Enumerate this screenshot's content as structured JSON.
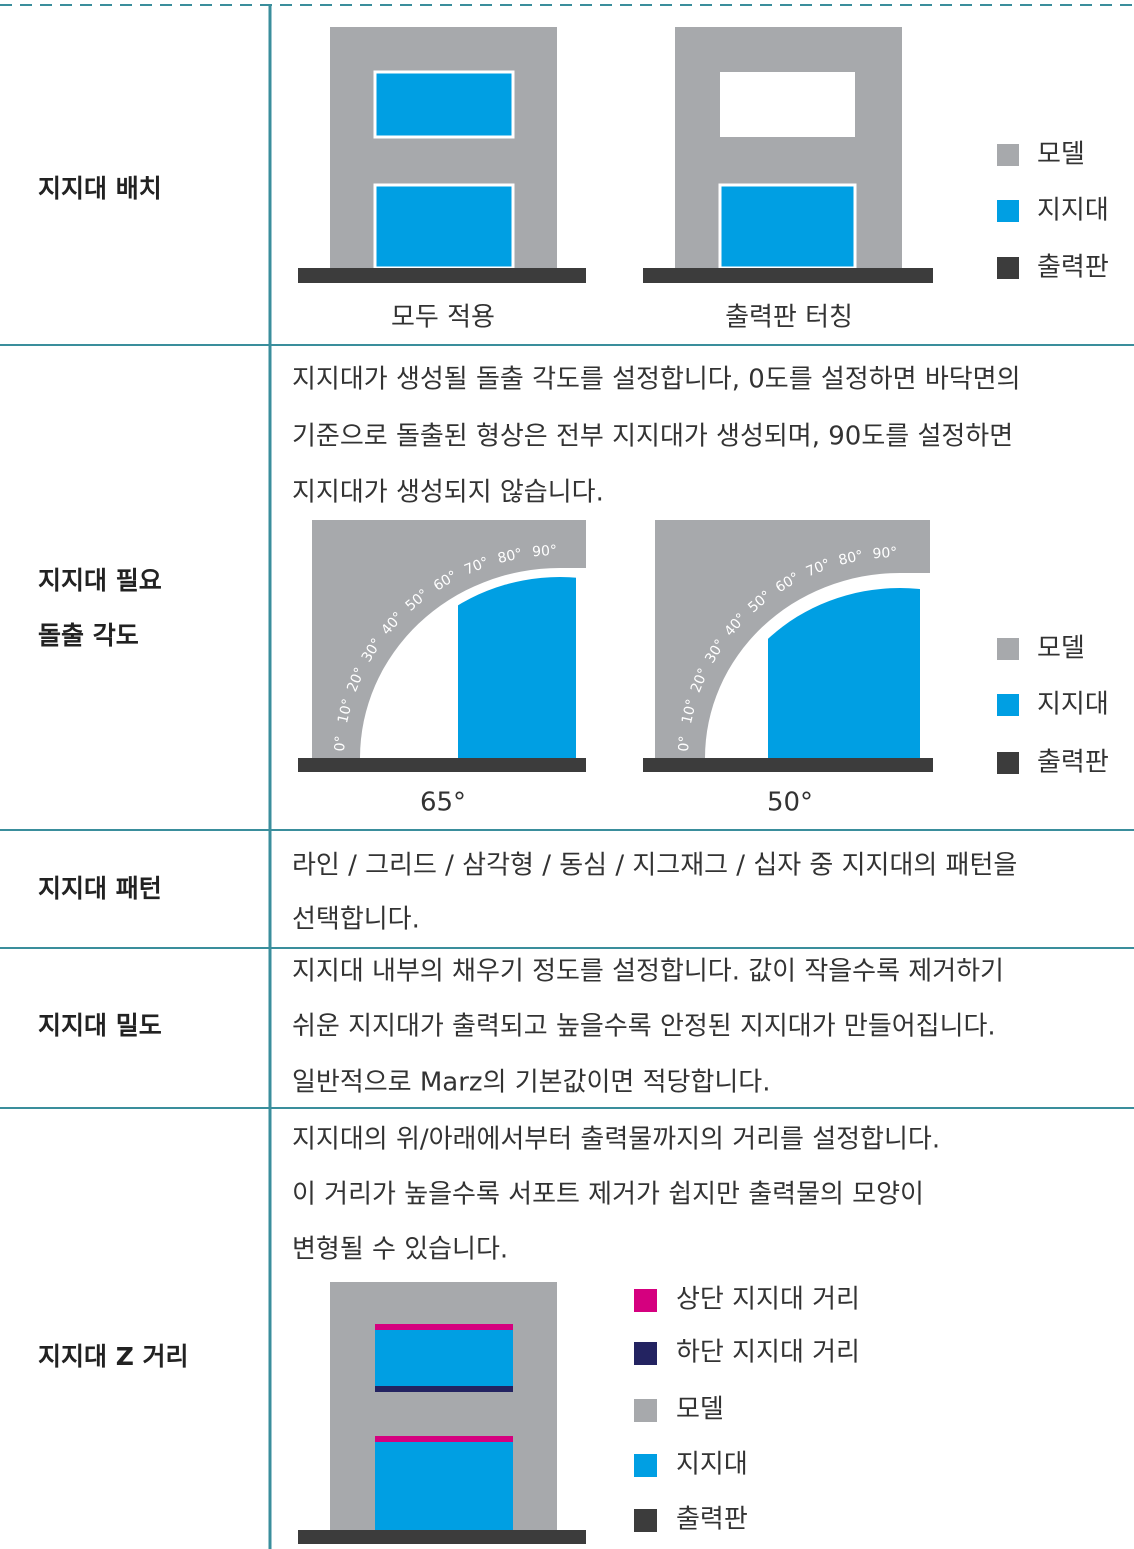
{
  "rows": [
    {
      "label": "지지대 배치",
      "figures": [
        {
          "caption": "모두 적용"
        },
        {
          "caption": "출력판 터칭"
        }
      ],
      "legend": [
        "모델",
        "지지대",
        "출력판"
      ]
    },
    {
      "label_lines": [
        "지지대 필요",
        "돌출 각도"
      ],
      "text_lines": [
        "지지대가 생성될 돌출 각도를 설정합니다, 0도를 설정하면 바닥면의",
        "기준으로 돌출된 형상은 전부 지지대가 생성되며, 90도를 설정하면",
        "지지대가 생성되지 않습니다."
      ],
      "angle_labels": [
        "0°",
        "10°",
        "20°",
        "30°",
        "40°",
        "50°",
        "60°",
        "70°",
        "80°",
        "90°"
      ],
      "figures": [
        {
          "caption": "65°"
        },
        {
          "caption": "50°"
        }
      ],
      "legend": [
        "모델",
        "지지대",
        "출력판"
      ]
    },
    {
      "label": "지지대 패턴",
      "text_lines": [
        "라인 / 그리드 / 삼각형 / 동심 / 지그재그 / 십자 중 지지대의 패턴을",
        "선택합니다."
      ]
    },
    {
      "label": "지지대 밀도",
      "text_lines": [
        "지지대 내부의 채우기 정도를 설정합니다. 값이 작을수록 제거하기",
        "쉬운 지지대가 출력되고 높을수록 안정된 지지대가 만들어집니다.",
        "일반적으로 Marz의 기본값이면 적당합니다."
      ]
    },
    {
      "label": "지지대 Z 거리",
      "text_lines": [
        "지지대의 위/아래에서부터 출력물까지의 거리를 설정합니다.",
        "이 거리가 높을수록 서포트 제거가 쉽지만 출력물의 모양이",
        "변형될 수 있습니다."
      ],
      "legend": [
        "상단 지지대 거리",
        "하단 지지대 거리",
        "모델",
        "지지대",
        "출력판"
      ]
    }
  ]
}
